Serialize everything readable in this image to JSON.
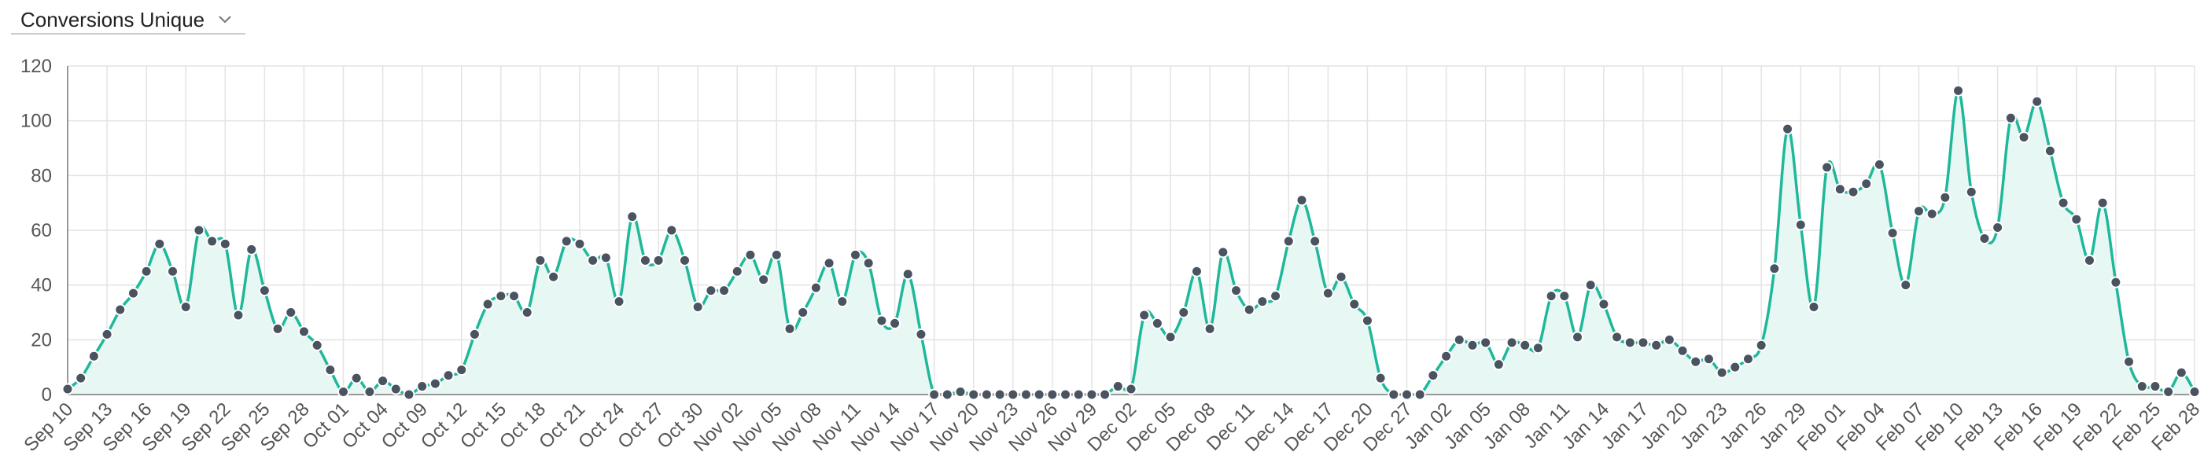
{
  "dropdown": {
    "label": "Conversions Unique",
    "icon": "chevron-down-icon"
  },
  "colors": {
    "line": "#1fb89a",
    "area": "#e7f7f3",
    "point": "#4a5360",
    "grid": "#e3e3e3",
    "axis": "#999999"
  },
  "chart_data": {
    "type": "area",
    "title": "",
    "xlabel": "",
    "ylabel": "",
    "ylim": [
      0,
      120
    ],
    "yticks": [
      0,
      20,
      40,
      60,
      80,
      100,
      120
    ],
    "grid": true,
    "tick_labels": [
      "Sep 10",
      "Sep 13",
      "Sep 16",
      "Sep 19",
      "Sep 22",
      "Sep 25",
      "Sep 28",
      "Oct 01",
      "Oct 04",
      "Oct 09",
      "Oct 12",
      "Oct 15",
      "Oct 18",
      "Oct 21",
      "Oct 24",
      "Oct 27",
      "Oct 30",
      "Nov 02",
      "Nov 05",
      "Nov 08",
      "Nov 11",
      "Nov 14",
      "Nov 17",
      "Nov 20",
      "Nov 23",
      "Nov 26",
      "Nov 29",
      "Dec 02",
      "Dec 05",
      "Dec 08",
      "Dec 11",
      "Dec 14",
      "Dec 17",
      "Dec 20",
      "Dec 27",
      "Jan 02",
      "Jan 05",
      "Jan 08",
      "Jan 11",
      "Jan 14",
      "Jan 17",
      "Jan 20",
      "Jan 23",
      "Jan 26",
      "Jan 29",
      "Feb 01",
      "Feb 04",
      "Feb 07",
      "Feb 10",
      "Feb 13",
      "Feb 16",
      "Feb 19",
      "Feb 22",
      "Feb 25",
      "Feb 28"
    ],
    "tick_index": [
      0,
      3,
      6,
      9,
      12,
      15,
      18,
      21,
      24,
      27,
      30,
      33,
      36,
      39,
      42,
      45,
      48,
      51,
      54,
      57,
      60,
      63,
      66,
      69,
      72,
      75,
      78,
      81,
      84,
      87,
      90,
      93,
      96,
      99,
      102,
      105,
      108,
      111,
      114,
      117,
      120,
      123,
      126,
      129,
      132,
      135,
      138,
      141,
      144,
      147,
      150,
      153,
      156,
      159,
      162
    ],
    "series": [
      {
        "values": [
          2,
          6,
          14,
          22,
          31,
          37,
          45,
          55,
          45,
          32,
          60,
          56,
          55,
          29,
          53,
          38,
          24,
          30,
          23,
          18,
          9,
          1,
          6,
          1,
          5,
          2,
          0,
          3,
          4,
          7,
          9,
          22,
          33,
          36,
          36,
          30,
          49,
          43,
          56,
          55,
          49,
          50,
          34,
          65,
          49,
          49,
          60,
          49,
          32,
          38,
          38,
          45,
          51,
          42,
          51,
          24,
          30,
          39,
          48,
          34,
          51,
          48,
          27,
          26,
          44,
          22,
          0,
          0,
          1,
          0,
          0,
          0,
          0,
          0,
          0,
          0,
          0,
          0,
          0,
          0,
          3,
          2,
          29,
          26,
          21,
          30,
          45,
          24,
          52,
          38,
          31,
          34,
          36,
          56,
          71,
          56,
          37,
          43,
          33,
          27,
          6,
          0,
          0,
          0,
          7,
          14,
          20,
          18,
          19,
          11,
          19,
          18,
          17,
          36,
          36,
          21,
          40,
          33,
          21,
          19,
          19,
          18,
          20,
          16,
          12,
          13,
          8,
          10,
          13,
          18,
          46,
          97,
          62,
          32,
          83,
          75,
          74,
          77,
          84,
          59,
          40,
          67,
          66,
          72,
          111,
          74,
          57,
          61,
          101,
          94,
          107,
          89,
          70,
          64,
          49,
          70,
          41,
          12,
          3,
          3,
          1,
          8,
          1
        ]
      }
    ]
  }
}
